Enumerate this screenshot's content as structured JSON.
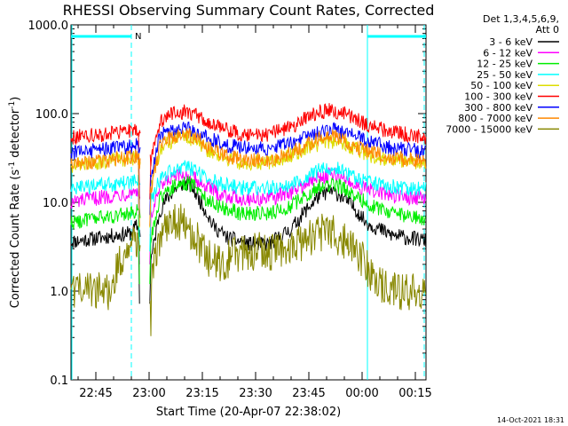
{
  "chart_data": {
    "type": "line",
    "title": "RHESSI Observing Summary Count Rates, Corrected",
    "xlabel": "Start Time (20-Apr-07 22:38:02)",
    "ylabel_main": "Corrected Count Rate (s",
    "ylabel_sup1": "-1",
    "ylabel_mid": " detector",
    "ylabel_sup2": "-1",
    "ylabel_end": ")",
    "y_scale": "log",
    "ylim": [
      0.1,
      1000
    ],
    "x_range_minutes": [
      0,
      100
    ],
    "x_ticks": [
      {
        "label": "22:45",
        "t": 7
      },
      {
        "label": "23:00",
        "t": 22
      },
      {
        "label": "23:15",
        "t": 37
      },
      {
        "label": "23:30",
        "t": 52
      },
      {
        "label": "23:45",
        "t": 67
      },
      {
        "label": "00:00",
        "t": 82
      },
      {
        "label": "00:15",
        "t": 97
      }
    ],
    "y_ticks": [
      {
        "label": "0.1",
        "v": 0.1
      },
      {
        "label": "1.0",
        "v": 1
      },
      {
        "label": "10.0",
        "v": 10
      },
      {
        "label": "100.0",
        "v": 100
      },
      {
        "label": "1000.0",
        "v": 1000
      }
    ],
    "legend_header": [
      "Det 1,3,4,5,6,9,",
      "Att 0"
    ],
    "legend_position": "right",
    "night_marker_label": "N",
    "night_intervals": [
      [
        0,
        17
      ],
      [
        83.5,
        100
      ]
    ],
    "time_markers": [
      {
        "t": 17,
        "style": "dashed"
      },
      {
        "t": 83.5,
        "style": "solid"
      },
      {
        "t": 99.5,
        "style": "dashed"
      }
    ],
    "data_gap_minutes": [
      19,
      22.5
    ],
    "series": [
      {
        "name": "3 - 6 keV",
        "color": "#000000",
        "points": [
          [
            0,
            3.6
          ],
          [
            17,
            4.5
          ],
          [
            18.5,
            5.5
          ],
          [
            22.5,
            2.2
          ],
          [
            25,
            8
          ],
          [
            27,
            11
          ],
          [
            30,
            15
          ],
          [
            32,
            16.5
          ],
          [
            34,
            15
          ],
          [
            36,
            11
          ],
          [
            38,
            8
          ],
          [
            40,
            5.5
          ],
          [
            44,
            4
          ],
          [
            50,
            3.4
          ],
          [
            56,
            3.4
          ],
          [
            62,
            5
          ],
          [
            66,
            8
          ],
          [
            70,
            12
          ],
          [
            73,
            13.5
          ],
          [
            76,
            12
          ],
          [
            80,
            8.5
          ],
          [
            83,
            6
          ],
          [
            90,
            4.3
          ],
          [
            100,
            3.7
          ]
        ]
      },
      {
        "name": "6 - 12 keV",
        "color": "#ff00ff",
        "points": [
          [
            0,
            10
          ],
          [
            17,
            13
          ],
          [
            18.5,
            14
          ],
          [
            22.5,
            7
          ],
          [
            25,
            14
          ],
          [
            27,
            17
          ],
          [
            30,
            19.5
          ],
          [
            32,
            20.5
          ],
          [
            34,
            19.5
          ],
          [
            36,
            17
          ],
          [
            38,
            15
          ],
          [
            42,
            12.5
          ],
          [
            48,
            11
          ],
          [
            56,
            11
          ],
          [
            62,
            13
          ],
          [
            66,
            16
          ],
          [
            70,
            19
          ],
          [
            73,
            20.5
          ],
          [
            76,
            19
          ],
          [
            80,
            16
          ],
          [
            83,
            14
          ],
          [
            90,
            12
          ],
          [
            100,
            11
          ]
        ]
      },
      {
        "name": "12 - 25 keV",
        "color": "#00ee00",
        "points": [
          [
            0,
            6
          ],
          [
            17,
            7.5
          ],
          [
            18.5,
            8
          ],
          [
            22.5,
            4
          ],
          [
            25,
            11
          ],
          [
            27,
            13.5
          ],
          [
            30,
            16
          ],
          [
            32,
            16.5
          ],
          [
            34,
            16
          ],
          [
            36,
            14
          ],
          [
            38,
            11
          ],
          [
            42,
            9
          ],
          [
            48,
            7.5
          ],
          [
            56,
            7.5
          ],
          [
            62,
            9
          ],
          [
            66,
            12
          ],
          [
            70,
            15
          ],
          [
            73,
            16
          ],
          [
            76,
            15
          ],
          [
            80,
            12
          ],
          [
            83,
            10
          ],
          [
            90,
            7.5
          ],
          [
            100,
            6.5
          ]
        ]
      },
      {
        "name": "25 - 50 keV",
        "color": "#00ffff",
        "points": [
          [
            0,
            14
          ],
          [
            17,
            17
          ],
          [
            18.5,
            18
          ],
          [
            22.5,
            10
          ],
          [
            25,
            18
          ],
          [
            27,
            21
          ],
          [
            30,
            24
          ],
          [
            32,
            25
          ],
          [
            34,
            24
          ],
          [
            36,
            21
          ],
          [
            38,
            19
          ],
          [
            42,
            16
          ],
          [
            48,
            14.5
          ],
          [
            56,
            14.5
          ],
          [
            62,
            16
          ],
          [
            66,
            19
          ],
          [
            70,
            23
          ],
          [
            73,
            25
          ],
          [
            76,
            23
          ],
          [
            80,
            19
          ],
          [
            83,
            17
          ],
          [
            90,
            15
          ],
          [
            100,
            14
          ]
        ]
      },
      {
        "name": "50 - 100 keV",
        "color": "#dddd00",
        "points": [
          [
            0,
            26
          ],
          [
            17,
            31
          ],
          [
            18.5,
            33
          ],
          [
            22.5,
            15
          ],
          [
            25,
            38
          ],
          [
            27,
            45
          ],
          [
            30,
            52
          ],
          [
            32,
            54
          ],
          [
            34,
            52
          ],
          [
            36,
            45
          ],
          [
            38,
            40
          ],
          [
            42,
            33
          ],
          [
            48,
            28
          ],
          [
            56,
            28
          ],
          [
            62,
            34
          ],
          [
            66,
            40
          ],
          [
            70,
            46
          ],
          [
            73,
            48
          ],
          [
            76,
            46
          ],
          [
            80,
            40
          ],
          [
            83,
            35
          ],
          [
            90,
            30
          ],
          [
            100,
            27
          ]
        ]
      },
      {
        "name": "100 - 300 keV",
        "color": "#ff0000",
        "points": [
          [
            0,
            54
          ],
          [
            17,
            63
          ],
          [
            18.5,
            68
          ],
          [
            22.5,
            30
          ],
          [
            25,
            80
          ],
          [
            27,
            93
          ],
          [
            30,
            103
          ],
          [
            32,
            106
          ],
          [
            34,
            103
          ],
          [
            36,
            92
          ],
          [
            38,
            82
          ],
          [
            42,
            68
          ],
          [
            48,
            59
          ],
          [
            56,
            59
          ],
          [
            62,
            71
          ],
          [
            66,
            88
          ],
          [
            70,
            104
          ],
          [
            73,
            110
          ],
          [
            76,
            104
          ],
          [
            80,
            90
          ],
          [
            83,
            76
          ],
          [
            90,
            62
          ],
          [
            100,
            54
          ]
        ]
      },
      {
        "name": "300 - 800 keV",
        "color": "#0000ff",
        "points": [
          [
            0,
            36
          ],
          [
            17,
            43
          ],
          [
            18.5,
            46
          ],
          [
            22.5,
            20
          ],
          [
            25,
            55
          ],
          [
            27,
            62
          ],
          [
            30,
            67
          ],
          [
            32,
            68
          ],
          [
            34,
            67
          ],
          [
            36,
            60
          ],
          [
            38,
            55
          ],
          [
            42,
            46
          ],
          [
            48,
            41
          ],
          [
            56,
            41
          ],
          [
            62,
            48
          ],
          [
            66,
            56
          ],
          [
            70,
            63
          ],
          [
            73,
            66
          ],
          [
            76,
            63
          ],
          [
            80,
            56
          ],
          [
            83,
            49
          ],
          [
            90,
            41
          ],
          [
            100,
            37
          ]
        ]
      },
      {
        "name": "800 - 7000 keV",
        "color": "#ff8800",
        "points": [
          [
            0,
            27
          ],
          [
            17,
            32
          ],
          [
            18.5,
            34
          ],
          [
            22.5,
            14
          ],
          [
            25,
            42
          ],
          [
            27,
            51
          ],
          [
            30,
            57
          ],
          [
            32,
            58
          ],
          [
            34,
            57
          ],
          [
            36,
            51
          ],
          [
            38,
            43
          ],
          [
            42,
            35
          ],
          [
            48,
            30
          ],
          [
            56,
            30
          ],
          [
            62,
            36
          ],
          [
            66,
            44
          ],
          [
            70,
            52
          ],
          [
            73,
            56
          ],
          [
            76,
            53
          ],
          [
            80,
            44
          ],
          [
            83,
            38
          ],
          [
            90,
            32
          ],
          [
            100,
            28
          ]
        ]
      },
      {
        "name": "7000 - 15000 keV",
        "color": "#888800",
        "points": [
          [
            0,
            1.0
          ],
          [
            12,
            1.0
          ],
          [
            13,
            2.0
          ],
          [
            17,
            3.0
          ],
          [
            18.5,
            3.5
          ],
          [
            22.5,
            0.5
          ],
          [
            23,
            2
          ],
          [
            25,
            3.6
          ],
          [
            27,
            5.5
          ],
          [
            30,
            6.5
          ],
          [
            32,
            5.2
          ],
          [
            34,
            4.5
          ],
          [
            36,
            3.5
          ],
          [
            38,
            2.5
          ],
          [
            42,
            2
          ],
          [
            48,
            2.8
          ],
          [
            56,
            2.8
          ],
          [
            62,
            3
          ],
          [
            66,
            3.8
          ],
          [
            70,
            4.6
          ],
          [
            73,
            4.6
          ],
          [
            76,
            4
          ],
          [
            80,
            3
          ],
          [
            83,
            2
          ],
          [
            86,
            1.2
          ],
          [
            90,
            1.0
          ],
          [
            100,
            1.0
          ]
        ]
      }
    ]
  },
  "footer": {
    "date_stamp": "14-Oct-2021 18:31"
  }
}
